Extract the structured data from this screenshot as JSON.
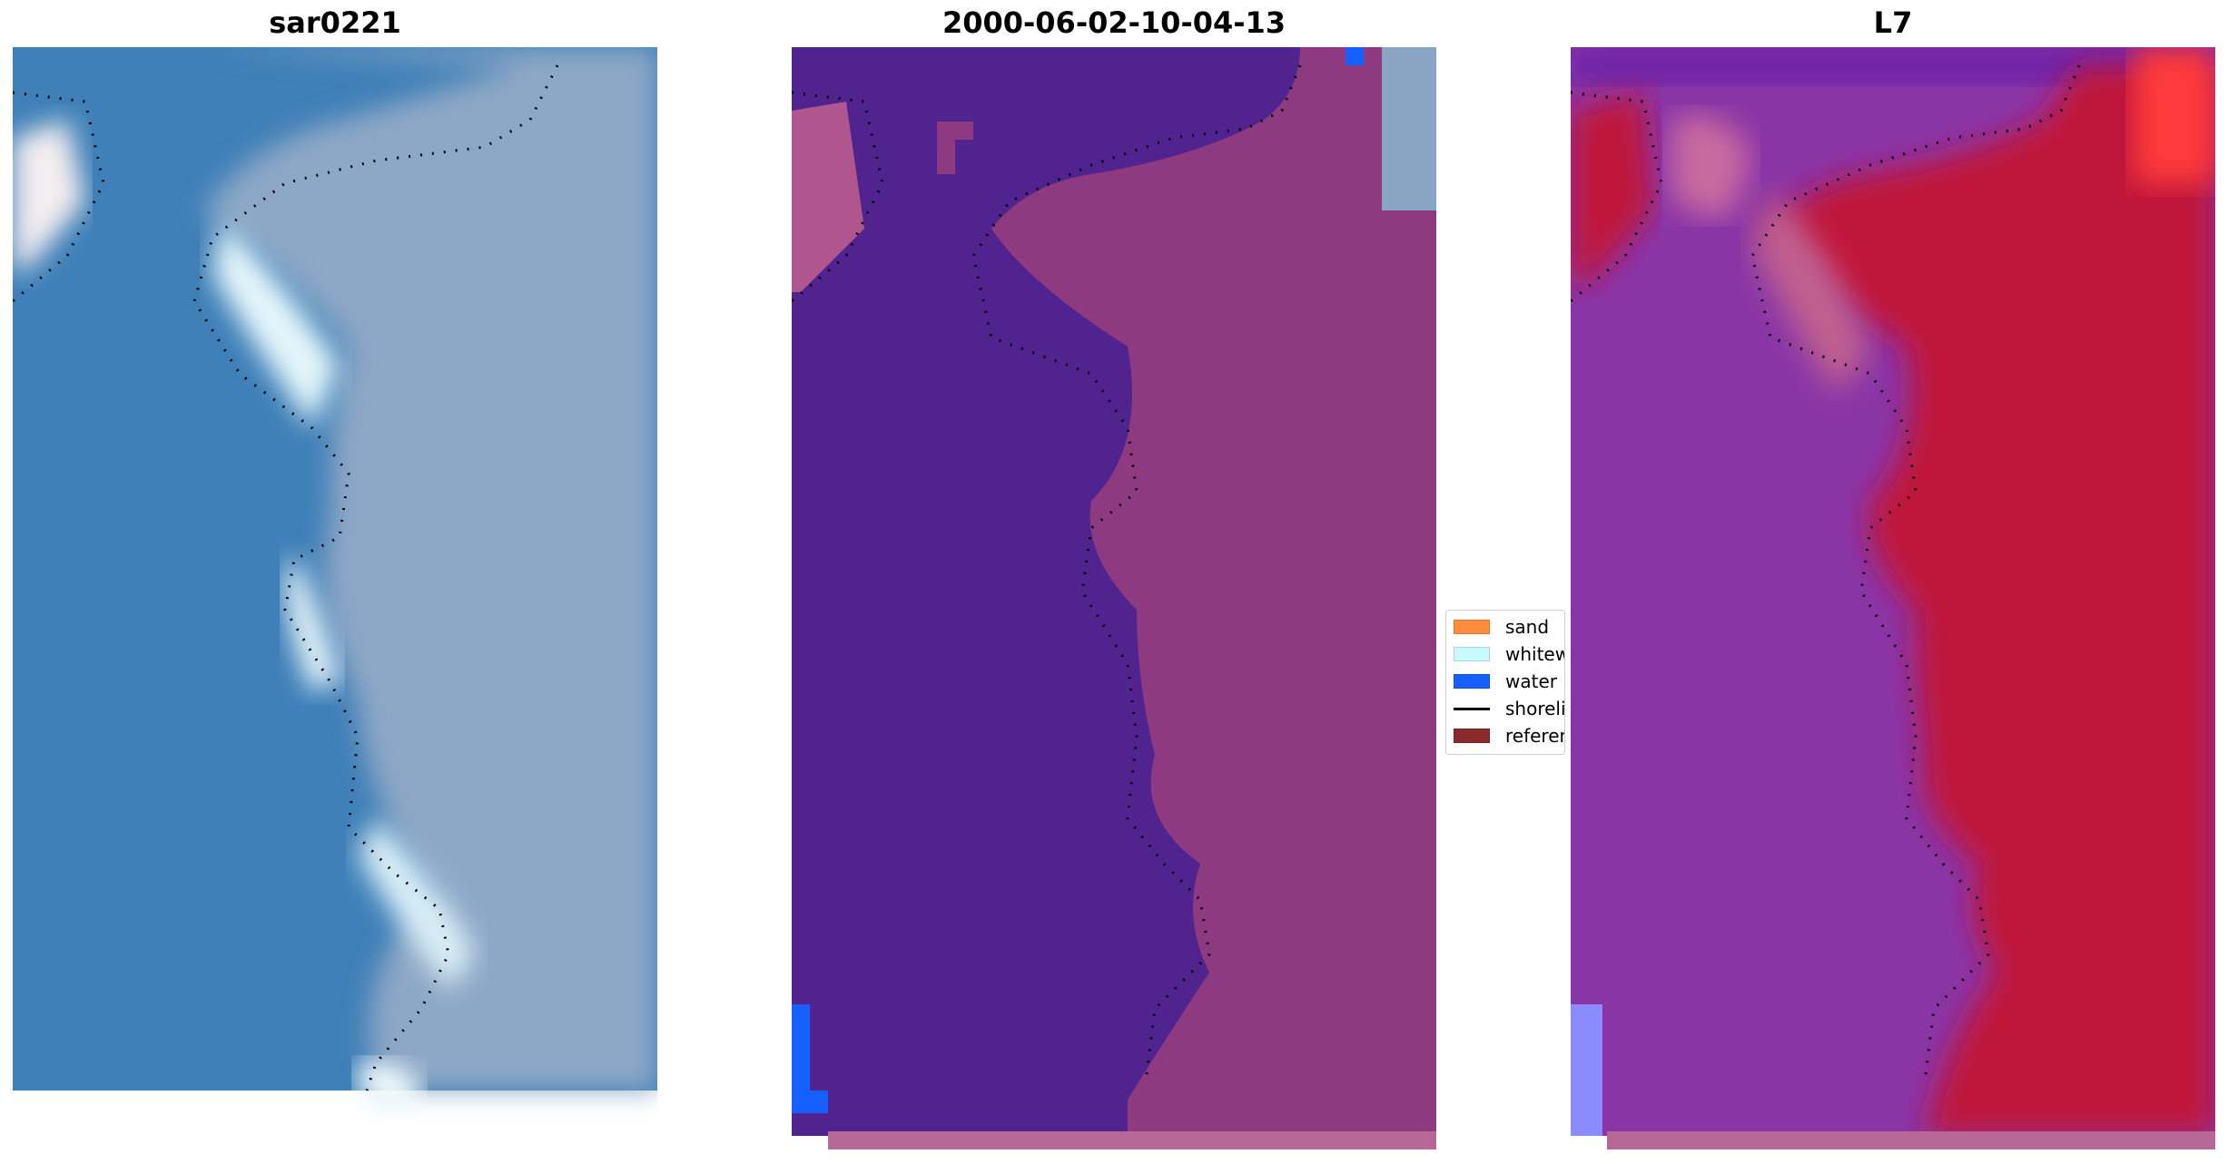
{
  "panels": [
    {
      "title": "sar0221",
      "kind": "rgb"
    },
    {
      "title": "2000-06-02-10-04-13",
      "kind": "classified"
    },
    {
      "title": "L7",
      "kind": "index"
    }
  ],
  "legend": {
    "items": [
      {
        "label": "sand",
        "color": "#ff8c3c",
        "type": "patch"
      },
      {
        "label": "whitewater",
        "color": "#c8faff",
        "type": "patch"
      },
      {
        "label": "water",
        "color": "#1560ff",
        "type": "patch"
      },
      {
        "label": "shoreline",
        "color": "#000000",
        "type": "line"
      },
      {
        "label": "reference",
        "color": "#8b2a2a",
        "type": "patch"
      }
    ]
  },
  "colors": {
    "deep_water": "#3a7ab5",
    "whitewater": "#e8f6fb",
    "land_rgb": "#8ea6c2",
    "class_water": "#50238f",
    "class_land": "#8e3a80",
    "index_land": "#c0143a",
    "index_water": "#8c3aa8"
  }
}
